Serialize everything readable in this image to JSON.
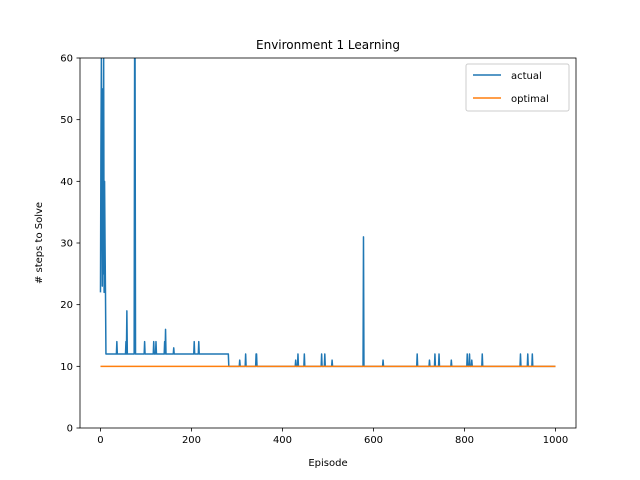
{
  "chart_data": {
    "type": "line",
    "title": "Environment 1 Learning",
    "xlabel": "Episode",
    "ylabel": "# steps to Solve",
    "xlim": [
      -45,
      1045
    ],
    "ylim": [
      0,
      60
    ],
    "xticks": [
      0,
      200,
      400,
      600,
      800,
      1000
    ],
    "yticks": [
      0,
      10,
      20,
      30,
      40,
      50,
      60
    ],
    "grid": false,
    "legend_position": "top-right",
    "series": [
      {
        "name": "actual",
        "color": "#1f77b4",
        "x": [
          0,
          1,
          2,
          3,
          4,
          5,
          6,
          7,
          8,
          9,
          10,
          11,
          12,
          35,
          36,
          37,
          55,
          56,
          57,
          58,
          59,
          60,
          61,
          74,
          75,
          76,
          77,
          78,
          96,
          97,
          98,
          116,
          117,
          118,
          121,
          122,
          123,
          124,
          140,
          141,
          142,
          143,
          144,
          160,
          161,
          162,
          205,
          206,
          207,
          215,
          216,
          217,
          281,
          282,
          305,
          306,
          307,
          318,
          319,
          320,
          341,
          342,
          343,
          344,
          428,
          429,
          430,
          433,
          434,
          435,
          447,
          448,
          449,
          485,
          486,
          487,
          492,
          493,
          494,
          508,
          509,
          510,
          577,
          578,
          579,
          620,
          621,
          622,
          695,
          696,
          697,
          722,
          723,
          724,
          734,
          735,
          736,
          743,
          744,
          745,
          770,
          771,
          772,
          805,
          806,
          807,
          810,
          811,
          812,
          815,
          816,
          817,
          838,
          839,
          840,
          922,
          923,
          924,
          938,
          939,
          940,
          948,
          949,
          950,
          1000
        ],
        "y": [
          22,
          45,
          60,
          38,
          23,
          55,
          25,
          60,
          22,
          40,
          30,
          22,
          12,
          12,
          14,
          12,
          12,
          14,
          12,
          19,
          12,
          12,
          12,
          12,
          60,
          60,
          12,
          12,
          12,
          14,
          12,
          12,
          14,
          12,
          12,
          14,
          12,
          12,
          12,
          14,
          12,
          16,
          12,
          12,
          13,
          12,
          12,
          14,
          12,
          12,
          14,
          12,
          12,
          10,
          10,
          11,
          10,
          10,
          12,
          10,
          10,
          12,
          12,
          10,
          10,
          11,
          10,
          10,
          12,
          10,
          10,
          12,
          10,
          10,
          12,
          10,
          10,
          12,
          10,
          10,
          11,
          10,
          10,
          31,
          10,
          10,
          11,
          10,
          10,
          12,
          10,
          10,
          11,
          10,
          10,
          12,
          10,
          10,
          12,
          10,
          10,
          11,
          10,
          10,
          12,
          10,
          10,
          12,
          10,
          10,
          11,
          10,
          10,
          12,
          10,
          10,
          12,
          10,
          10,
          12,
          10,
          10,
          12,
          10,
          10
        ]
      },
      {
        "name": "optimal",
        "color": "#ff7f0e",
        "x": [
          0,
          1000
        ],
        "y": [
          10,
          10
        ]
      }
    ]
  }
}
